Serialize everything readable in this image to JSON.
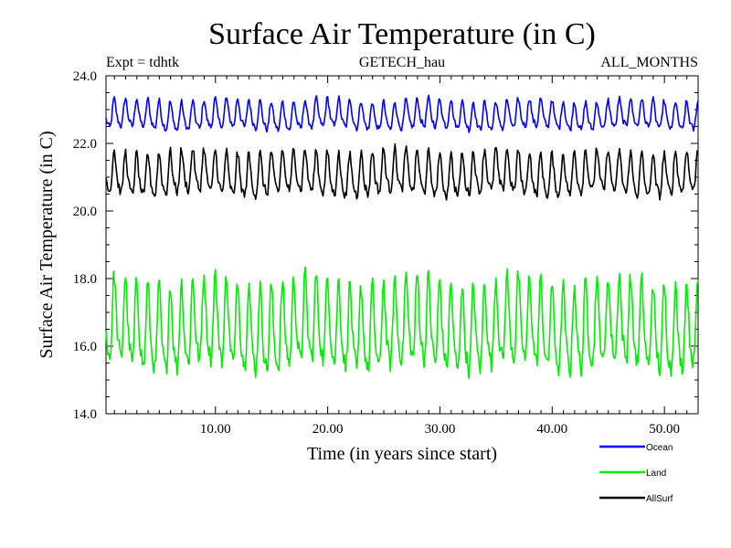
{
  "chart_data": {
    "type": "line",
    "title": "Surface Air Temperature (in C)",
    "subtitle_left": "Expt = tdhtk",
    "subtitle_center": "GETECH_hau",
    "subtitle_right": "ALL_MONTHS",
    "xlabel": "Time (in years since start)",
    "ylabel": "Surface Air Temperature (in C)",
    "xlim": [
      0.25,
      53
    ],
    "ylim": [
      14.0,
      24.0
    ],
    "x_ticks": [
      10,
      20,
      30,
      40,
      50
    ],
    "x_tick_labels": [
      "10.00",
      "20.00",
      "30.00",
      "40.00",
      "50.00"
    ],
    "y_ticks": [
      14,
      16,
      18,
      20,
      22,
      24
    ],
    "y_tick_labels": [
      "14.0",
      "16.0",
      "18.0",
      "20.0",
      "22.0",
      "24.0"
    ],
    "legend_placement": "below-right",
    "series": [
      {
        "name": "Ocean",
        "color": "#0000ff",
        "seasonal_low": 22.3,
        "seasonal_high": 23.3,
        "annual_mean": 22.75,
        "period_years": 1.0
      },
      {
        "name": "Land",
        "color": "#00ee00",
        "seasonal_low": 15.0,
        "seasonal_high": 18.0,
        "annual_mean": 16.2,
        "period_years": 1.0
      },
      {
        "name": "AllSurf",
        "color": "#000000",
        "seasonal_low": 20.3,
        "seasonal_high": 21.8,
        "annual_mean": 20.9,
        "period_years": 1.0
      }
    ]
  }
}
